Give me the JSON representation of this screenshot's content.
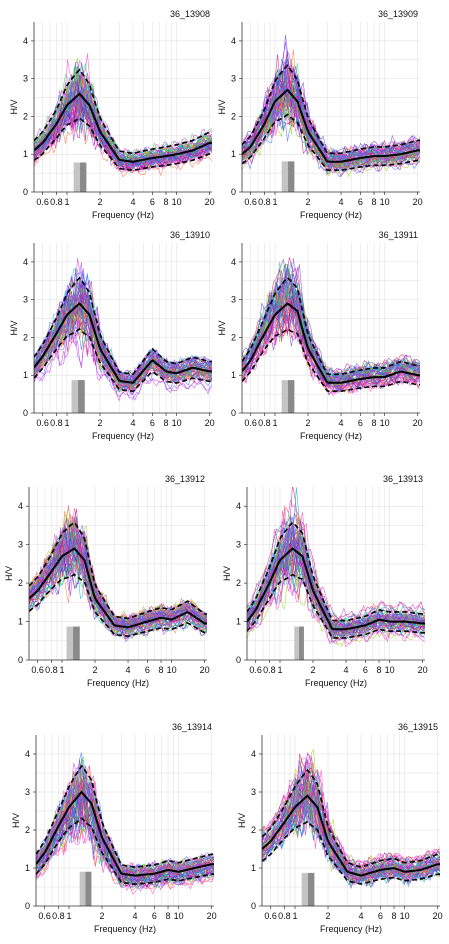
{
  "chart_data": [
    {
      "type": "line",
      "title": "36_13908",
      "xlabel": "Frequency (Hz)",
      "ylabel": "H/V",
      "xscale": "log",
      "xlim": [
        0.5,
        21
      ],
      "ylim": [
        0,
        4.5
      ],
      "x_ticks": [
        "0.6",
        "0.8",
        "1",
        "2",
        "4",
        "6",
        "8",
        "10",
        "20"
      ],
      "y_ticks": [
        "0",
        "1",
        "2",
        "3",
        "4"
      ],
      "grid": true,
      "peak": {
        "f0": 1.3,
        "amp": 2.6
      },
      "shaded_band": [
        1.15,
        1.5
      ],
      "series": [
        {
          "role": "mean",
          "x": [
            0.5,
            0.6,
            0.8,
            1.0,
            1.3,
            1.6,
            2.0,
            3.0,
            4.0,
            6.0,
            8.0,
            10.0,
            14.0,
            20.0
          ],
          "values": [
            1.1,
            1.3,
            1.8,
            2.3,
            2.6,
            2.3,
            1.6,
            0.85,
            0.8,
            0.9,
            0.95,
            1.0,
            1.1,
            1.3
          ]
        }
      ]
    },
    {
      "type": "line",
      "title": "36_13909",
      "xlabel": "Frequency (Hz)",
      "ylabel": "H/V",
      "xscale": "log",
      "xlim": [
        0.5,
        21
      ],
      "ylim": [
        0,
        4.5
      ],
      "x_ticks": [
        "0.6",
        "0.8",
        "1",
        "2",
        "4",
        "6",
        "8",
        "10",
        "20"
      ],
      "y_ticks": [
        "0",
        "1",
        "2",
        "3",
        "4"
      ],
      "grid": true,
      "peak": {
        "f0": 1.3,
        "amp": 2.7
      },
      "shaded_band": [
        1.15,
        1.5
      ],
      "series": [
        {
          "role": "mean",
          "x": [
            0.5,
            0.6,
            0.8,
            1.0,
            1.3,
            1.6,
            2.0,
            3.0,
            4.0,
            6.0,
            8.0,
            10.0,
            14.0,
            20.0
          ],
          "values": [
            1.0,
            1.2,
            1.8,
            2.4,
            2.7,
            2.4,
            1.6,
            0.8,
            0.8,
            0.9,
            0.95,
            0.95,
            1.0,
            1.1
          ]
        }
      ]
    },
    {
      "type": "line",
      "title": "36_13910",
      "xlabel": "Frequency (Hz)",
      "ylabel": "H/V",
      "xscale": "log",
      "xlim": [
        0.5,
        21
      ],
      "ylim": [
        0,
        4.5
      ],
      "x_ticks": [
        "0.6",
        "0.8",
        "1",
        "2",
        "4",
        "6",
        "8",
        "10",
        "20"
      ],
      "y_ticks": [
        "0",
        "1",
        "2",
        "3",
        "4"
      ],
      "grid": true,
      "peak": {
        "f0": 1.3,
        "amp": 2.9
      },
      "shaded_band": [
        1.1,
        1.45
      ],
      "series": [
        {
          "role": "mean",
          "x": [
            0.5,
            0.6,
            0.8,
            1.0,
            1.3,
            1.6,
            2.0,
            3.0,
            4.0,
            6.0,
            8.0,
            10.0,
            14.0,
            20.0
          ],
          "values": [
            1.2,
            1.5,
            2.1,
            2.6,
            2.9,
            2.6,
            1.7,
            0.85,
            0.8,
            1.4,
            1.1,
            1.05,
            1.2,
            1.1
          ]
        }
      ]
    },
    {
      "type": "line",
      "title": "36_13911",
      "xlabel": "Frequency (Hz)",
      "ylabel": "H/V",
      "xscale": "log",
      "xlim": [
        0.5,
        21
      ],
      "ylim": [
        0,
        4.5
      ],
      "x_ticks": [
        "0.6",
        "0.8",
        "1",
        "2",
        "4",
        "6",
        "8",
        "10",
        "20"
      ],
      "y_ticks": [
        "0",
        "1",
        "2",
        "3",
        "4"
      ],
      "grid": true,
      "peak": {
        "f0": 1.3,
        "amp": 2.9
      },
      "shaded_band": [
        1.15,
        1.5
      ],
      "series": [
        {
          "role": "mean",
          "x": [
            0.5,
            0.6,
            0.8,
            1.0,
            1.3,
            1.6,
            2.0,
            3.0,
            4.0,
            6.0,
            8.0,
            10.0,
            14.0,
            20.0
          ],
          "values": [
            1.1,
            1.4,
            2.1,
            2.6,
            2.9,
            2.7,
            1.7,
            0.8,
            0.8,
            0.9,
            0.95,
            0.95,
            1.1,
            1.0
          ]
        }
      ]
    },
    {
      "type": "line",
      "title": "36_13912",
      "xlabel": "Frequency (Hz)",
      "ylabel": "H/V",
      "xscale": "log",
      "xlim": [
        0.5,
        21
      ],
      "ylim": [
        0,
        4.5
      ],
      "x_ticks": [
        "0.6",
        "0.8",
        "1",
        "2",
        "4",
        "6",
        "8",
        "10",
        "20"
      ],
      "y_ticks": [
        "0",
        "1",
        "2",
        "3",
        "4"
      ],
      "grid": true,
      "peak": {
        "f0": 1.25,
        "amp": 2.9
      },
      "shaded_band": [
        1.1,
        1.45
      ],
      "series": [
        {
          "role": "mean",
          "x": [
            0.5,
            0.6,
            0.8,
            1.0,
            1.3,
            1.6,
            2.0,
            3.0,
            4.0,
            6.0,
            8.0,
            10.0,
            14.0,
            20.0
          ],
          "values": [
            1.6,
            1.8,
            2.3,
            2.7,
            2.9,
            2.6,
            1.6,
            0.9,
            0.85,
            1.0,
            1.1,
            1.05,
            1.25,
            0.95
          ]
        }
      ]
    },
    {
      "type": "line",
      "title": "36_13913",
      "xlabel": "Frequency (Hz)",
      "ylabel": "H/V",
      "xscale": "log",
      "xlim": [
        0.5,
        21
      ],
      "ylim": [
        0,
        4.5
      ],
      "x_ticks": [
        "0.6",
        "0.8",
        "1",
        "2",
        "4",
        "6",
        "8",
        "10",
        "20"
      ],
      "y_ticks": [
        "0",
        "1",
        "2",
        "3",
        "4"
      ],
      "grid": true,
      "peak": {
        "f0": 1.3,
        "amp": 2.9
      },
      "shaded_band": [
        1.35,
        1.65
      ],
      "series": [
        {
          "role": "mean",
          "x": [
            0.5,
            0.6,
            0.8,
            1.0,
            1.3,
            1.6,
            2.0,
            3.0,
            4.0,
            6.0,
            8.0,
            10.0,
            14.0,
            20.0
          ],
          "values": [
            1.0,
            1.3,
            2.0,
            2.6,
            2.9,
            2.7,
            1.8,
            0.8,
            0.8,
            0.9,
            1.05,
            1.0,
            1.0,
            0.95
          ]
        }
      ]
    },
    {
      "type": "line",
      "title": "36_13914",
      "xlabel": "Frequency (Hz)",
      "ylabel": "H/V",
      "xscale": "log",
      "xlim": [
        0.5,
        21
      ],
      "ylim": [
        0,
        4.5
      ],
      "x_ticks": [
        "0.6",
        "0.8",
        "1",
        "2",
        "4",
        "6",
        "8",
        "10",
        "20"
      ],
      "y_ticks": [
        "0",
        "1",
        "2",
        "3",
        "4"
      ],
      "grid": true,
      "peak": {
        "f0": 1.35,
        "amp": 3.0
      },
      "shaded_band": [
        1.25,
        1.6
      ],
      "series": [
        {
          "role": "mean",
          "x": [
            0.5,
            0.6,
            0.8,
            1.0,
            1.3,
            1.6,
            2.0,
            3.0,
            4.0,
            6.0,
            8.0,
            10.0,
            14.0,
            20.0
          ],
          "values": [
            1.1,
            1.4,
            2.1,
            2.6,
            3.0,
            2.7,
            1.8,
            0.85,
            0.8,
            0.85,
            0.95,
            0.9,
            1.0,
            1.1
          ]
        }
      ]
    },
    {
      "type": "line",
      "title": "36_13915",
      "xlabel": "Frequency (Hz)",
      "ylabel": "H/V",
      "xscale": "log",
      "xlim": [
        0.5,
        21
      ],
      "ylim": [
        0,
        4.5
      ],
      "x_ticks": [
        "0.6",
        "0.8",
        "1",
        "2",
        "4",
        "6",
        "8",
        "10",
        "20"
      ],
      "y_ticks": [
        "0",
        "1",
        "2",
        "3",
        "4"
      ],
      "grid": true,
      "peak": {
        "f0": 1.35,
        "amp": 2.9
      },
      "shaded_band": [
        1.15,
        1.5
      ],
      "series": [
        {
          "role": "mean",
          "x": [
            0.5,
            0.6,
            0.8,
            1.0,
            1.3,
            1.6,
            2.0,
            3.0,
            4.0,
            6.0,
            8.0,
            10.0,
            14.0,
            20.0
          ],
          "values": [
            1.5,
            1.7,
            2.2,
            2.6,
            2.9,
            2.6,
            1.7,
            0.9,
            0.8,
            0.95,
            1.0,
            0.9,
            0.95,
            1.1
          ]
        }
      ]
    }
  ],
  "colors": {
    "mean": "#000000",
    "std_dash": "#000000",
    "band_dark": "#8a8a8a",
    "band_light": "#c4c4c4",
    "grid": "#dcdcdc",
    "window_palette": [
      "#cc33cc",
      "#9933ff",
      "#3366ff",
      "#00aacc",
      "#33cc66",
      "#99cc00",
      "#ff6633",
      "#cc0066",
      "#6633cc",
      "#ff33cc"
    ]
  }
}
